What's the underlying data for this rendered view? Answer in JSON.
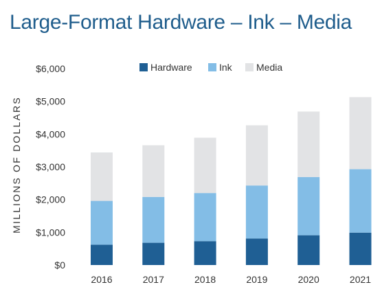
{
  "chart_data": {
    "type": "bar",
    "stacked": true,
    "title": "Large-Format Hardware – Ink – Media",
    "xlabel": "",
    "ylabel": "MILLIONS OF DOLLARS",
    "categories": [
      "2016",
      "2017",
      "2018",
      "2019",
      "2020",
      "2021"
    ],
    "series": [
      {
        "name": "Hardware",
        "color": "#1f5f94",
        "values": [
          620,
          680,
          730,
          810,
          910,
          990
        ]
      },
      {
        "name": "Ink",
        "color": "#83bde6",
        "values": [
          1340,
          1400,
          1470,
          1620,
          1780,
          1940
        ]
      },
      {
        "name": "Media",
        "color": "#e2e3e5",
        "values": [
          1480,
          1580,
          1690,
          1840,
          2000,
          2200
        ]
      }
    ],
    "ylim": [
      0,
      6000
    ],
    "yticks": [
      0,
      1000,
      2000,
      3000,
      4000,
      5000,
      6000
    ],
    "ytick_labels": [
      "$0",
      "$1,000",
      "$2,000",
      "$3,000",
      "$4,000",
      "$5,000",
      "$6,000"
    ],
    "legend_position": "top-center",
    "grid": false
  }
}
